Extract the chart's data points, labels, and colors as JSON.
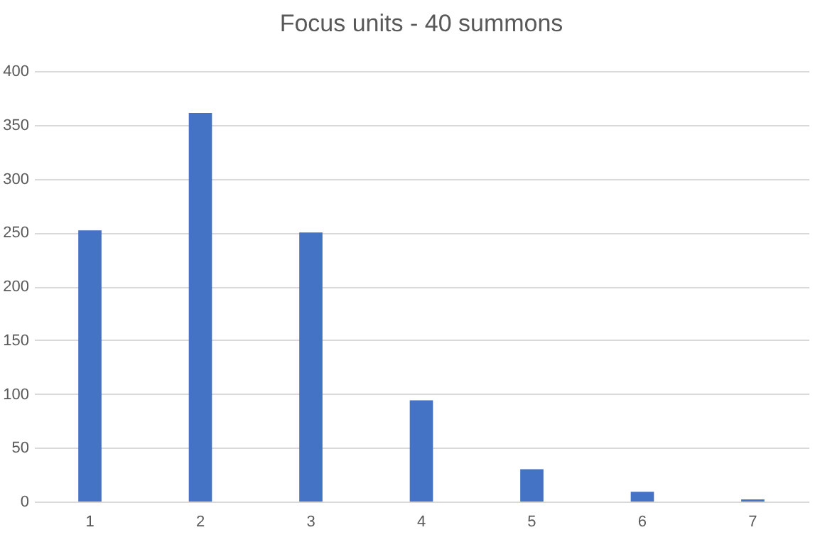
{
  "chart_data": {
    "type": "bar",
    "title": "Focus units - 40 summons",
    "categories": [
      "1",
      "2",
      "3",
      "4",
      "5",
      "6",
      "7"
    ],
    "values": [
      252,
      361,
      250,
      94,
      30,
      9,
      2
    ],
    "color": "#4472c4",
    "ylim": [
      0,
      400
    ],
    "yticks": [
      0,
      50,
      100,
      150,
      200,
      250,
      300,
      350,
      400
    ],
    "grid": true
  }
}
